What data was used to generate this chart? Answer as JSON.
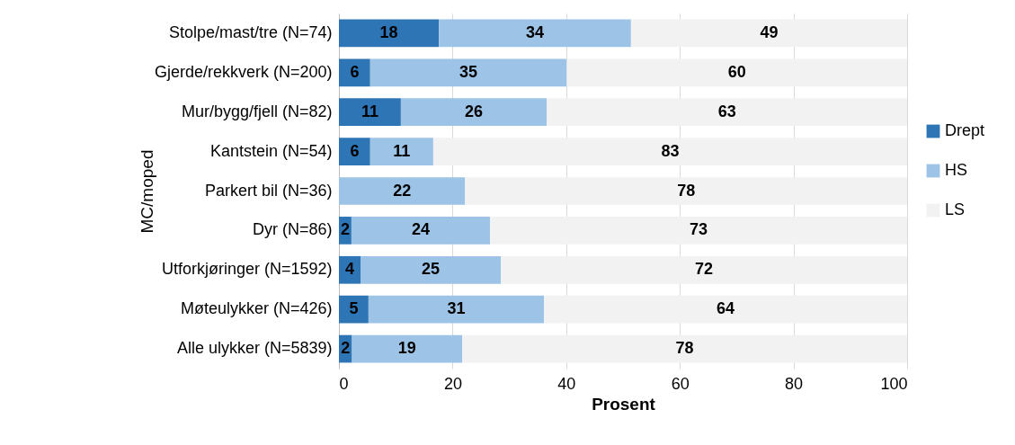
{
  "chart_data": {
    "type": "bar",
    "orientation": "horizontal",
    "stacked": true,
    "ylabel": "MC/moped",
    "xlabel": "Prosent",
    "categories": [
      "Stolpe/mast/tre (N=74)",
      "Gjerde/rekkverk (N=200)",
      "Mur/bygg/fjell (N=82)",
      "Kantstein (N=54)",
      "Parkert bil (N=36)",
      "Dyr (N=86)",
      "Utforkjøringer (N=1592)",
      "Møteulykker (N=426)",
      "Alle ulykker (N=5839)"
    ],
    "series": [
      {
        "name": "Drept",
        "color": "#2e75b6",
        "values": [
          17.6,
          5.5,
          10.9,
          5.5,
          0,
          2.2,
          3.8,
          5.2,
          2.3
        ],
        "value_labels": [
          "18",
          "6",
          "11",
          "6",
          null,
          "2",
          "4",
          "5",
          "2"
        ]
      },
      {
        "name": "HS",
        "color": "#9dc3e6",
        "values": [
          33.8,
          34.6,
          25.7,
          11.1,
          22.2,
          24.4,
          24.7,
          30.9,
          19.4
        ],
        "value_labels": [
          "34",
          "35",
          "26",
          "11",
          "22",
          "24",
          "25",
          "31",
          "19"
        ]
      },
      {
        "name": "LS",
        "color": "#f2f2f2",
        "values": [
          48.6,
          59.9,
          63.4,
          83.4,
          77.8,
          73.4,
          71.5,
          63.9,
          78.3
        ],
        "value_labels": [
          "49",
          "60",
          "63",
          "83",
          "78",
          "73",
          "72",
          "64",
          "78"
        ]
      }
    ],
    "xlim": [
      0,
      100
    ],
    "xticks": [
      0,
      20,
      40,
      60,
      80,
      100
    ],
    "grid": "x",
    "legend": "right"
  }
}
